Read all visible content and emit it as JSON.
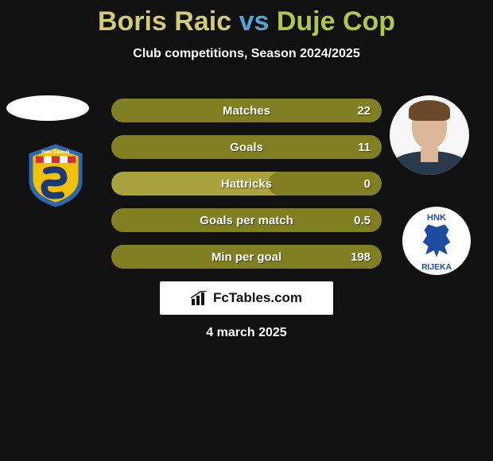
{
  "title": {
    "player1_name": "Boris Raic",
    "player1_color": "#d3cb72",
    "vs_text": "vs",
    "vs_color": "#4fa5d8",
    "player2_name": "Duje Cop",
    "player2_color": "#b3c54a"
  },
  "subtitle": "Club competitions, Season 2024/2025",
  "stats": {
    "bar_bg_color": "#a9a23e",
    "bar_fill_color": "#808022",
    "rows": [
      {
        "label": "Matches",
        "value": "22",
        "fill_pct": 100
      },
      {
        "label": "Goals",
        "value": "11",
        "fill_pct": 100
      },
      {
        "label": "Hattricks",
        "value": "0",
        "fill_pct": 42
      },
      {
        "label": "Goals per match",
        "value": "0.5",
        "fill_pct": 100
      },
      {
        "label": "Min per goal",
        "value": "198",
        "fill_pct": 100
      }
    ]
  },
  "left_team": {
    "name": "HNK Šibenik",
    "crest_top_text": "HNK Šibenik",
    "shield_blue": "#2b67b3",
    "shield_yellow": "#f2c200",
    "checker_red": "#d32f2f",
    "checker_white": "#ffffff"
  },
  "right_player": {
    "avatar_bg": "#f6f6f6"
  },
  "right_team": {
    "name": "HNK Rijeka",
    "crest_text_top": "HNK",
    "crest_text_bottom": "RIJEKA",
    "crest_text_color": "#1e4aa0",
    "eagle_color": "#1e4aa0"
  },
  "brand": {
    "text": "FcTables.com",
    "icon_name": "bars-icon",
    "icon_color": "#111111"
  },
  "date": "4 march 2025"
}
